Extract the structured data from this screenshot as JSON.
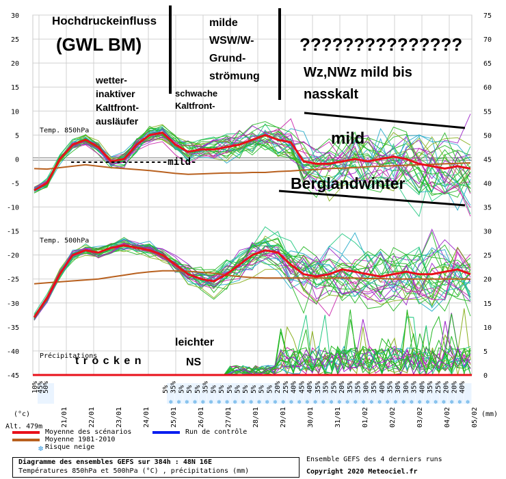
{
  "chart_data": {
    "type": "line",
    "left_axis_ticks": [
      30,
      25,
      20,
      15,
      10,
      5,
      0,
      -5,
      -10,
      -15,
      -20,
      -25,
      -30,
      -35,
      -40,
      -45
    ],
    "right_axis_ticks": [
      75,
      70,
      65,
      60,
      55,
      50,
      45,
      40,
      35,
      30,
      25,
      20,
      15,
      10,
      5,
      0
    ],
    "ylim": [
      -45,
      30
    ],
    "date_labels": [
      "21/01",
      "22/01",
      "23/01",
      "24/01",
      "25/01",
      "26/01",
      "27/01",
      "28/01",
      "29/01",
      "30/01",
      "31/01",
      "01/02",
      "02/02",
      "03/02",
      "04/02",
      "05/02"
    ],
    "panel_850": {
      "label": "Temp. 850hPa",
      "mean_series": [
        -6.5,
        -5,
        0,
        3,
        4,
        2.5,
        -0.5,
        0,
        3,
        5,
        5.5,
        3,
        1.5,
        2,
        2,
        2.5,
        3,
        4,
        5,
        4,
        3.5,
        -0.5,
        -1,
        -1,
        -0.5,
        0,
        -0.5,
        0,
        0.5,
        0,
        -1,
        -1.5,
        -2,
        -1.5,
        -2
      ],
      "climate_series": [
        -2,
        -2.1,
        -1.8,
        -1.5,
        -1.2,
        -1.5,
        -1.8,
        -2,
        -2.2,
        -2.4,
        -2.7,
        -3,
        -3.2,
        -3.1,
        -3,
        -2.9,
        -2.9,
        -2.8,
        -2.8,
        -2.6,
        -2.5,
        -2.3,
        -2.2,
        -2,
        -1.9,
        -1.8,
        -1.6,
        -1.5,
        -1.4,
        -1.3,
        -1.2,
        -1.1,
        -1,
        -0.9,
        -0.8
      ]
    },
    "panel_500": {
      "label": "Temp. 500hPa",
      "mean_series": [
        -33,
        -29,
        -24,
        -20,
        -19,
        -19.5,
        -18.5,
        -18,
        -18.5,
        -19,
        -20,
        -22,
        -24,
        -25,
        -25.5,
        -24,
        -22,
        -20,
        -19,
        -19.5,
        -22,
        -24,
        -24.5,
        -24,
        -23,
        -23.5,
        -24,
        -24.5,
        -24,
        -23.5,
        -24,
        -24,
        -23.5,
        -23,
        -24
      ],
      "climate_series": [
        -26,
        -25.8,
        -25.6,
        -25.4,
        -25.2,
        -25,
        -24.6,
        -24.2,
        -23.8,
        -23.5,
        -23.3,
        -23.3,
        -23.4,
        -23.6,
        -23.8,
        -24.2,
        -24.5,
        -24.7,
        -24.8,
        -24.8,
        -24.8,
        -24.8,
        -24.8,
        -24.8,
        -24.8,
        -24.8,
        -24.9,
        -24.9,
        -25,
        -25,
        -25,
        -25,
        -25,
        -25,
        -25
      ]
    },
    "precip_label": "Précipitations",
    "snow_risk_bottom": [
      "10%",
      "45%",
      "50%"
    ],
    "snow_risk": [
      "5%",
      "35%",
      "5%",
      "5%",
      "5%",
      "35%",
      "5%",
      "5%",
      "5%",
      "5%",
      "5%",
      "5%",
      "5%",
      "5%",
      "20%",
      "25%",
      "40%",
      "45%",
      "40%",
      "35%",
      "35%",
      "25%",
      "20%",
      "35%",
      "35%",
      "30%",
      "35%",
      "40%",
      "35%",
      "30%",
      "30%",
      "35%",
      "40%",
      "35%",
      "25%",
      "20%",
      "20%",
      "40%"
    ],
    "legend": [
      {
        "name": "Moyenne des scénarios",
        "color": "#e8101a"
      },
      {
        "name": "Run de contrôle",
        "color": "#0a1ef0"
      },
      {
        "name": "Moyenne 1981-2010",
        "color": "#b8601e"
      },
      {
        "name": "Risque neige",
        "color": "#6ab4e8"
      }
    ]
  },
  "annotations": {
    "hoch": "Hochdruckeinfluss",
    "gwl": "(GWL BM)",
    "milde1": "milde",
    "milde2": "WSW/W-",
    "milde3": "Grund-",
    "milde4": "strömung",
    "question": "???????????????",
    "wz1": "Wz,NWz mild bis",
    "wz2": "nasskalt",
    "wetter1": "wetter-",
    "wetter2": "inaktiver",
    "wetter3": "Kaltfront-",
    "wetter4": "ausläufer",
    "schwache1": "schwache",
    "schwache2": "Kaltfront-",
    "mild_line": "-----------------mild-",
    "mild_big": "mild",
    "bergland": "Berglandwinter",
    "trocken": "t r o c k e n",
    "leichter": "leichter",
    "ns": "NS"
  },
  "axis_units": {
    "left": "(°c)",
    "right": "(mm)",
    "alt": "Alt. 479m"
  },
  "footer": {
    "title": "Diagramme des ensembles GEFS sur 384h : 48N 16E",
    "subtitle": "Températures 850hPa et 500hPa (°C) , précipitations (mm)",
    "runs": "Ensemble GEFS des 4 derniers runs",
    "copyright": "Copyright 2020 Meteociel.fr"
  }
}
